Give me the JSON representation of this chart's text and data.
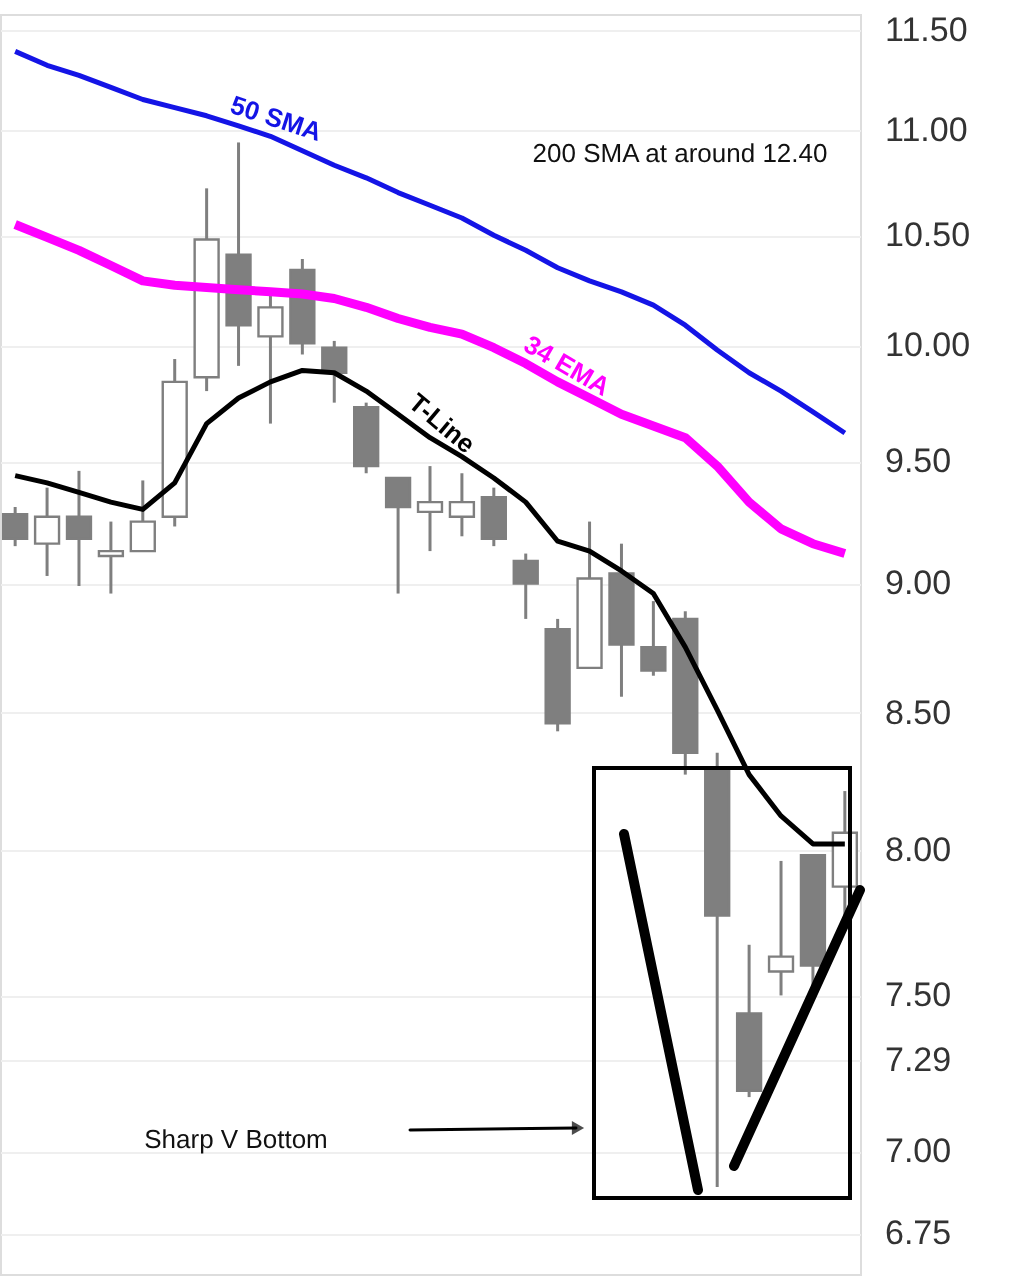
{
  "chart_data": {
    "type": "candlestick",
    "categories": [
      null,
      null,
      null,
      null,
      null,
      null,
      null,
      null,
      null,
      null,
      null,
      null,
      null,
      null,
      null,
      null,
      null,
      null,
      null,
      null,
      null,
      null,
      null,
      null,
      null,
      null,
      null
    ],
    "ohlc": [
      [
        9.28,
        9.31,
        9.15,
        9.18
      ],
      [
        9.16,
        9.39,
        9.03,
        9.27
      ],
      [
        9.27,
        9.46,
        8.99,
        9.18
      ],
      [
        9.11,
        9.25,
        8.96,
        9.13
      ],
      [
        9.13,
        9.42,
        9.13,
        9.25
      ],
      [
        9.27,
        9.94,
        9.23,
        9.84
      ],
      [
        9.86,
        10.72,
        9.8,
        10.48
      ],
      [
        10.41,
        10.94,
        9.91,
        10.09
      ],
      [
        10.04,
        10.23,
        9.66,
        10.17
      ],
      [
        10.34,
        10.39,
        9.96,
        10.01
      ],
      [
        9.99,
        10.02,
        9.75,
        9.88
      ],
      [
        9.73,
        9.75,
        9.45,
        9.48
      ],
      [
        9.43,
        9.43,
        8.96,
        9.31
      ],
      [
        9.29,
        9.48,
        9.13,
        9.33
      ],
      [
        9.27,
        9.45,
        9.19,
        9.33
      ],
      [
        9.35,
        9.39,
        9.15,
        9.18
      ],
      [
        9.09,
        9.12,
        8.86,
        9.0
      ],
      [
        8.82,
        8.86,
        8.43,
        8.46
      ],
      [
        8.67,
        9.25,
        8.67,
        9.02
      ],
      [
        9.04,
        9.16,
        8.56,
        8.76
      ],
      [
        8.75,
        8.93,
        8.64,
        8.66
      ],
      [
        8.86,
        8.89,
        8.27,
        8.35
      ],
      [
        8.29,
        8.35,
        6.89,
        7.77
      ],
      [
        7.44,
        7.67,
        7.17,
        7.19
      ],
      [
        7.58,
        7.96,
        7.5,
        7.63
      ],
      [
        7.98,
        7.98,
        7.53,
        7.6
      ],
      [
        7.87,
        8.21,
        7.73,
        8.06
      ]
    ],
    "series": [
      {
        "name": "50 SMA",
        "type": "line",
        "color": "#1414e6",
        "values": [
          11.39,
          11.32,
          11.27,
          11.21,
          11.15,
          11.11,
          11.07,
          11.02,
          10.97,
          10.9,
          10.83,
          10.77,
          10.7,
          10.64,
          10.58,
          10.5,
          10.43,
          10.35,
          10.29,
          10.24,
          10.18,
          10.09,
          9.98,
          9.88,
          9.8,
          9.71,
          9.62
        ]
      },
      {
        "name": "34 EMA",
        "type": "line",
        "color": "#ff00ff",
        "values": [
          10.55,
          10.49,
          10.43,
          10.36,
          10.29,
          10.27,
          10.26,
          10.25,
          10.24,
          10.23,
          10.21,
          10.17,
          10.12,
          10.08,
          10.05,
          9.99,
          9.92,
          9.84,
          9.77,
          9.7,
          9.65,
          9.6,
          9.48,
          9.33,
          9.22,
          9.16,
          9.12
        ]
      },
      {
        "name": "T-Line",
        "type": "line",
        "color": "#000000",
        "values": [
          9.44,
          9.41,
          9.37,
          9.33,
          9.3,
          9.41,
          9.66,
          9.77,
          9.84,
          9.89,
          9.88,
          9.8,
          9.7,
          9.6,
          9.52,
          9.43,
          9.33,
          9.17,
          9.13,
          9.05,
          8.96,
          8.75,
          8.51,
          8.27,
          8.12,
          8.02,
          8.02
        ]
      }
    ],
    "ylim": [
      6.63,
      11.58
    ],
    "yticks": [
      {
        "value": 11.5,
        "label": "11.50"
      },
      {
        "value": 11,
        "label": "11.00"
      },
      {
        "value": 10.5,
        "label": "10.50"
      },
      {
        "value": 10,
        "label": "10.00"
      },
      {
        "value": 9.5,
        "label": "9.50"
      },
      {
        "value": 9,
        "label": "9.00"
      },
      {
        "value": 8.5,
        "label": "8.50"
      },
      {
        "value": 8,
        "label": "8.00"
      },
      {
        "value": 7.5,
        "label": "7.50"
      },
      {
        "value": 7.29,
        "label": "7.29"
      },
      {
        "value": 7,
        "label": "7.00"
      },
      {
        "value": 6.75,
        "label": "6.75"
      }
    ],
    "log": "y",
    "grid": "y",
    "tick_labels": "y",
    "marker": "none",
    "line_style": "solid",
    "annotations": [
      "200 SMA at around 12.40",
      "Sharp V Bottom"
    ]
  }
}
